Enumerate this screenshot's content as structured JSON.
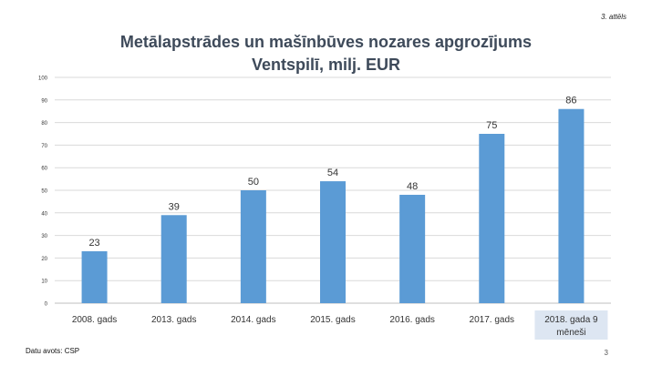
{
  "figure_label": "3. attēls",
  "page_number": "3",
  "source_note": "Datu avots: CSP",
  "colors": {
    "bar": "#5b9bd5",
    "grid": "#d9d9d9",
    "axis": "#bfbfbf",
    "highlight": "#dde6f2"
  },
  "chart_data": {
    "type": "bar",
    "title": "Metālapstrādes un mašīnbūves nozares apgrozījums",
    "subtitle": "Ventspilī, milj. EUR",
    "categories": [
      "2008. gads",
      "2013. gads",
      "2014. gads",
      "2015. gads",
      "2016. gads",
      "2017. gads",
      "2018. gada 9 mēneši"
    ],
    "values": [
      23,
      39,
      50,
      54,
      48,
      75,
      86
    ],
    "ylim": [
      0,
      100
    ],
    "yticks": [
      0,
      10,
      20,
      30,
      40,
      50,
      60,
      70,
      80,
      90,
      100
    ],
    "grid": true,
    "data_labels": true,
    "highlighted_category": "2018. gada 9 mēneši"
  }
}
